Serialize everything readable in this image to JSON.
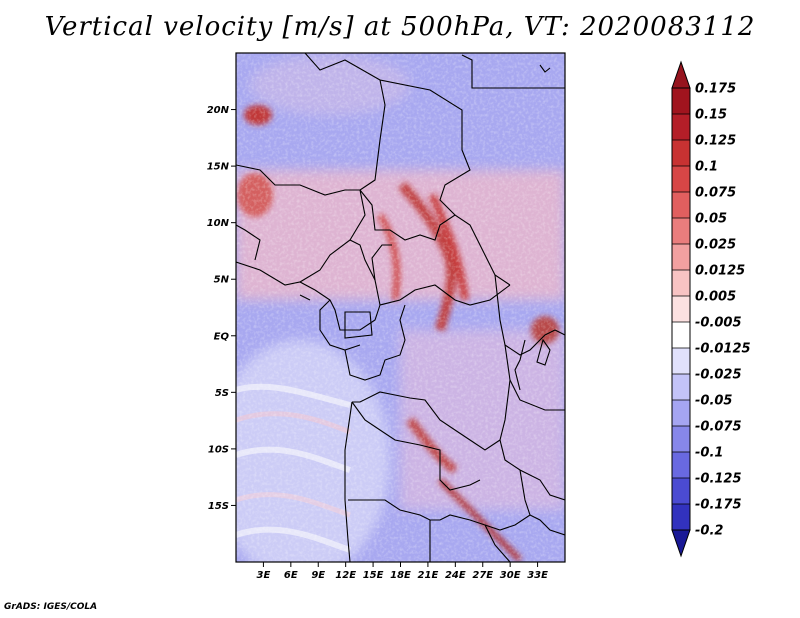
{
  "title": "Vertical velocity [m/s] at 500hPa, VT: 2020083112",
  "credit": "GrADS: IGES/COLA",
  "map": {
    "lon_range": [
      0,
      36
    ],
    "lat_range": [
      -20,
      25
    ],
    "lat_ticks": [
      {
        "lat": 20,
        "label": "20N"
      },
      {
        "lat": 15,
        "label": "15N"
      },
      {
        "lat": 10,
        "label": "10N"
      },
      {
        "lat": 5,
        "label": "5N"
      },
      {
        "lat": 0,
        "label": "EQ"
      },
      {
        "lat": -5,
        "label": "5S"
      },
      {
        "lat": -10,
        "label": "10S"
      },
      {
        "lat": -15,
        "label": "15S"
      }
    ],
    "lon_ticks": [
      {
        "lon": 3,
        "label": "3E"
      },
      {
        "lon": 6,
        "label": "6E"
      },
      {
        "lon": 9,
        "label": "9E"
      },
      {
        "lon": 12,
        "label": "12E"
      },
      {
        "lon": 15,
        "label": "15E"
      },
      {
        "lon": 18,
        "label": "18E"
      },
      {
        "lon": 21,
        "label": "21E"
      },
      {
        "lon": 24,
        "label": "24E"
      },
      {
        "lon": 27,
        "label": "27E"
      },
      {
        "lon": 30,
        "label": "30E"
      },
      {
        "lon": 33,
        "label": "33E"
      }
    ]
  },
  "colorbar": {
    "levels": [
      {
        "label": "0.175",
        "color": "#a0141e"
      },
      {
        "label": "0.15",
        "color": "#b41e28"
      },
      {
        "label": "0.125",
        "color": "#c83232"
      },
      {
        "label": "0.1",
        "color": "#d74646"
      },
      {
        "label": "0.075",
        "color": "#e15f5f"
      },
      {
        "label": "0.05",
        "color": "#ea7d7d"
      },
      {
        "label": "0.025",
        "color": "#f2a0a0"
      },
      {
        "label": "0.0125",
        "color": "#f8c3c3"
      },
      {
        "label": "0.005",
        "color": "#fce1e1"
      },
      {
        "label": "-0.005",
        "color": "#ffffff"
      },
      {
        "label": "-0.0125",
        "color": "#e1e1fc"
      },
      {
        "label": "-0.025",
        "color": "#c3c3f8"
      },
      {
        "label": "-0.05",
        "color": "#a5a5f2"
      },
      {
        "label": "-0.075",
        "color": "#8787ea"
      },
      {
        "label": "-0.1",
        "color": "#6969e1"
      },
      {
        "label": "-0.125",
        "color": "#4b4bd2"
      },
      {
        "label": "-0.175",
        "color": "#3232be"
      },
      {
        "label": "-0.2",
        "color": "#1e1ea5"
      }
    ],
    "top_triangle_color": "#96141e",
    "bottom_triangle_color": "#191996"
  }
}
